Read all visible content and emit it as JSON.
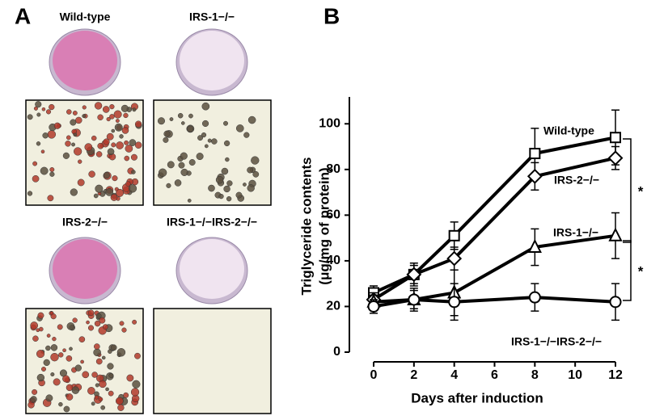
{
  "panel_labels": [
    "A",
    "B"
  ],
  "panel_a": {
    "labels": [
      "Wild-type",
      "IRS-1−/−",
      "IRS-2−/−",
      "IRS-1−/−IRS-2−/−"
    ]
  },
  "chart_data": {
    "type": "line",
    "x_label": "Days after induction",
    "y_label": [
      "Triglyceride contents",
      "(μg/mg of protein)"
    ],
    "x": [
      0,
      2,
      4,
      8,
      12
    ],
    "series": [
      {
        "name": "Wild-type",
        "marker": "square",
        "color": "#000000",
        "values": [
          26,
          34,
          51,
          87,
          94
        ],
        "errors": [
          3,
          5,
          6,
          11,
          12
        ]
      },
      {
        "name": "IRS-2−/−",
        "marker": "diamond",
        "color": "#000000",
        "values": [
          23,
          34,
          41,
          77,
          85
        ],
        "errors": [
          3,
          4,
          5,
          6,
          5
        ]
      },
      {
        "name": "IRS-1−/−",
        "marker": "triangle",
        "color": "#000000",
        "values": [
          22,
          23,
          26,
          46,
          51
        ],
        "errors": [
          3,
          4,
          10,
          8,
          10
        ]
      },
      {
        "name": "IRS-1−/−IRS-2−/−",
        "marker": "circle",
        "color": "#000000",
        "values": [
          20,
          23,
          22,
          24,
          22
        ],
        "errors": [
          3,
          5,
          8,
          6,
          8
        ]
      }
    ],
    "annotations": [
      "*",
      "*"
    ],
    "xlim": [
      0,
      12
    ],
    "xticks": [
      0,
      2,
      4,
      6,
      8,
      10,
      12
    ],
    "ylim": [
      0,
      110
    ],
    "yticks": [
      0,
      20,
      40,
      60,
      80,
      100
    ]
  }
}
